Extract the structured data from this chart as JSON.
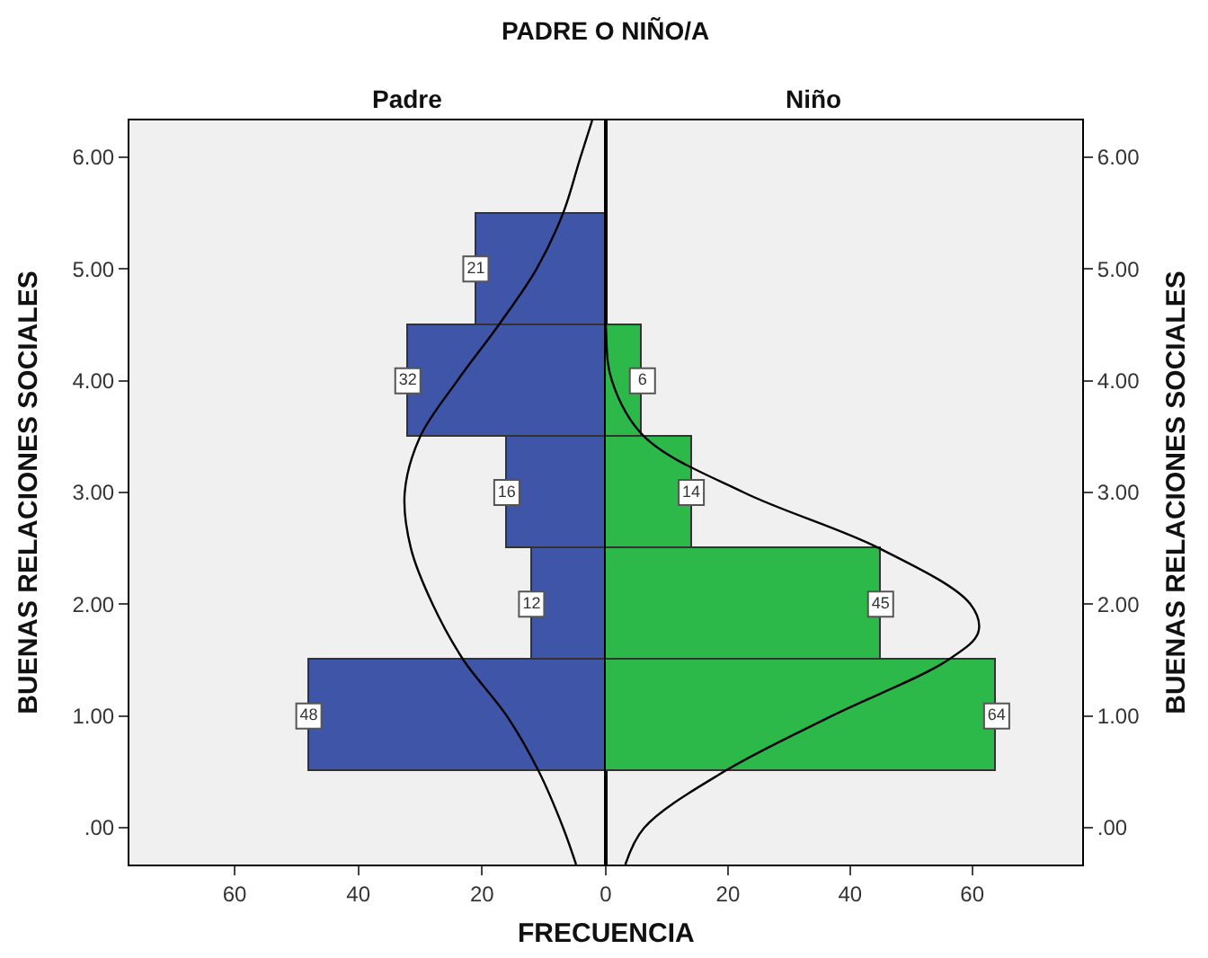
{
  "chart_data": [
    {
      "type": "histogram",
      "orientation": "horizontal",
      "title": "PADRE O NIÑO/A",
      "subtitle": "Padre",
      "xlabel": "FRECUENCIA",
      "ylabel": "BUENAS RELACIONES SOCIALES",
      "xlim": [
        77,
        0
      ],
      "xticks": [
        0,
        20,
        40,
        60
      ],
      "ylim": [
        -0.33,
        6.33
      ],
      "yticks": [
        {
          "value": 0,
          "label": ".00"
        },
        {
          "value": 1,
          "label": "1.00"
        },
        {
          "value": 2,
          "label": "2.00"
        },
        {
          "value": 3,
          "label": "3.00"
        },
        {
          "value": 4,
          "label": "4.00"
        },
        {
          "value": 5,
          "label": "5.00"
        },
        {
          "value": 6,
          "label": "6.00"
        }
      ],
      "series": [
        {
          "color": "#3f56a8",
          "bins": [
            0.5,
            1.5,
            2.5,
            3.5,
            4.5,
            5.5
          ],
          "values": [
            48,
            12,
            16,
            32,
            21
          ],
          "value_labels": [
            "48",
            "12",
            "16",
            "32",
            "21"
          ]
        },
        {
          "type": "line",
          "color": "#000000",
          "x": [
            -0.33,
            0,
            0.5,
            1,
            1.5,
            2,
            2.5,
            3,
            3.5,
            4,
            4.5,
            5,
            5.5,
            6,
            6.33
          ],
          "values": [
            4.8,
            6.9,
            10.8,
            16,
            23,
            28,
            31.5,
            32.5,
            30,
            24,
            17.3,
            11.2,
            6.9,
            4.1,
            2.2
          ]
        }
      ]
    },
    {
      "type": "histogram",
      "orientation": "horizontal",
      "subtitle": "Niño",
      "ylabel": "BUENAS RELACIONES SOCIALES",
      "xlim": [
        0,
        78
      ],
      "xticks": [
        20,
        40,
        60
      ],
      "ylim": [
        -0.33,
        6.33
      ],
      "yticks": [
        {
          "value": 0,
          "label": ".00"
        },
        {
          "value": 1,
          "label": "1.00"
        },
        {
          "value": 2,
          "label": "2.00"
        },
        {
          "value": 3,
          "label": "3.00"
        },
        {
          "value": 4,
          "label": "4.00"
        },
        {
          "value": 5,
          "label": "5.00"
        },
        {
          "value": 6,
          "label": "6.00"
        }
      ],
      "series": [
        {
          "color": "#2db84a",
          "bins": [
            0.5,
            1.5,
            2.5,
            3.5,
            4.5
          ],
          "values": [
            64,
            45,
            14,
            6
          ],
          "value_labels": [
            "64",
            "45",
            "14",
            "6"
          ]
        },
        {
          "type": "line",
          "color": "#000000",
          "x": [
            -0.33,
            0,
            0.5,
            1,
            1.5,
            1.75,
            2,
            2.5,
            3,
            3.5,
            4,
            4.5,
            6.33
          ],
          "values": [
            3.2,
            6.3,
            19.3,
            37,
            56,
            61,
            59.7,
            44.8,
            22.6,
            6.3,
            1,
            0,
            0
          ]
        }
      ]
    }
  ]
}
